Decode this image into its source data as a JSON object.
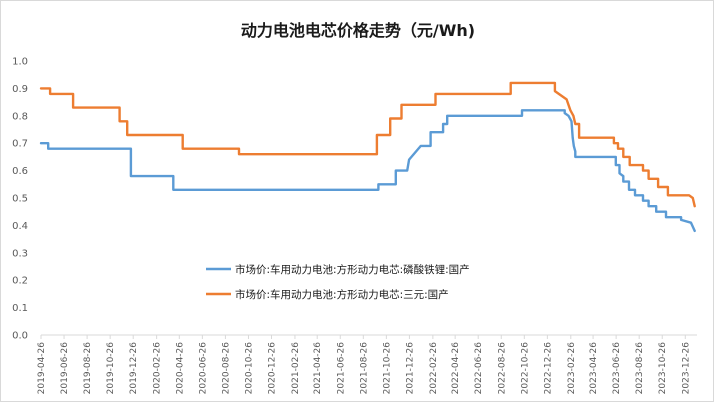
{
  "chart_data": {
    "type": "line",
    "title": "动力电池电芯价格走势（元/Wh)",
    "xlabel": "",
    "ylabel": "",
    "ylim": [
      0,
      1.0
    ],
    "yticks": [
      "0.0",
      "0.1",
      "0.2",
      "0.3",
      "0.4",
      "0.5",
      "0.6",
      "0.7",
      "0.8",
      "0.9",
      "1.0"
    ],
    "x_start": "2019-04-26",
    "x_end": "2024-01-26",
    "x_ticks": [
      "2019-04-26",
      "2019-06-26",
      "2019-08-26",
      "2019-10-26",
      "2019-12-26",
      "2020-02-26",
      "2020-04-26",
      "2020-06-26",
      "2020-08-26",
      "2020-10-26",
      "2020-12-26",
      "2021-02-26",
      "2021-04-26",
      "2021-06-26",
      "2021-08-26",
      "2021-10-26",
      "2021-12-26",
      "2022-02-26",
      "2022-04-26",
      "2022-06-26",
      "2022-08-26",
      "2022-10-26",
      "2022-12-26",
      "2023-02-26",
      "2023-04-26",
      "2023-06-26",
      "2023-08-26",
      "2023-10-26",
      "2023-12-26"
    ],
    "grid": false,
    "legend": "center",
    "series": [
      {
        "name": "市场价:车用动力电池:方形动力电芯:磷酸铁锂:国产",
        "color": "#5b9bd5",
        "x": [
          "2019-04-26",
          "2019-05-15",
          "2019-05-15",
          "2019-12-20",
          "2019-12-20",
          "2020-04-10",
          "2020-04-10",
          "2021-10-05",
          "2021-10-05",
          "2021-11-20",
          "2021-11-20",
          "2021-12-20",
          "2021-12-25",
          "2022-01-25",
          "2022-01-25",
          "2022-02-20",
          "2022-02-20",
          "2022-03-25",
          "2022-03-25",
          "2022-04-05",
          "2022-04-05",
          "2022-10-20",
          "2022-10-20",
          "2023-02-10",
          "2023-02-10",
          "2023-02-20",
          "2023-02-28",
          "2023-03-03",
          "2023-03-06",
          "2023-03-10",
          "2023-03-10",
          "2023-06-25",
          "2023-06-25",
          "2023-07-05",
          "2023-07-05",
          "2023-07-15",
          "2023-07-15",
          "2023-07-30",
          "2023-07-30",
          "2023-08-15",
          "2023-08-15",
          "2023-09-05",
          "2023-09-05",
          "2023-09-20",
          "2023-09-20",
          "2023-10-10",
          "2023-10-10",
          "2023-11-05",
          "2023-11-05",
          "2023-12-15",
          "2023-12-15",
          "2024-01-10",
          "2024-01-20"
        ],
        "values": [
          0.7,
          0.7,
          0.68,
          0.68,
          0.58,
          0.58,
          0.53,
          0.53,
          0.55,
          0.55,
          0.6,
          0.6,
          0.64,
          0.69,
          0.69,
          0.69,
          0.74,
          0.74,
          0.77,
          0.77,
          0.8,
          0.8,
          0.82,
          0.82,
          0.81,
          0.8,
          0.78,
          0.72,
          0.69,
          0.67,
          0.65,
          0.65,
          0.62,
          0.62,
          0.59,
          0.58,
          0.56,
          0.56,
          0.53,
          0.53,
          0.51,
          0.51,
          0.49,
          0.49,
          0.47,
          0.47,
          0.45,
          0.45,
          0.43,
          0.43,
          0.42,
          0.41,
          0.38
        ]
      },
      {
        "name": "市场价:车用动力电池:方形动力电芯:三元:国产",
        "color": "#ed7d31",
        "x": [
          "2019-04-26",
          "2019-05-20",
          "2019-05-20",
          "2019-07-20",
          "2019-07-20",
          "2019-11-20",
          "2019-11-20",
          "2019-12-10",
          "2019-12-10",
          "2020-05-05",
          "2020-05-05",
          "2020-10-01",
          "2020-10-01",
          "2021-10-01",
          "2021-10-01",
          "2021-11-05",
          "2021-11-05",
          "2021-12-05",
          "2021-12-05",
          "2021-12-20",
          "2021-12-20",
          "2022-03-05",
          "2022-03-05",
          "2022-04-05",
          "2022-04-05",
          "2022-09-20",
          "2022-09-20",
          "2023-01-15",
          "2023-01-15",
          "2023-02-15",
          "2023-02-25",
          "2023-03-05",
          "2023-03-10",
          "2023-03-20",
          "2023-03-20",
          "2023-06-20",
          "2023-06-20",
          "2023-07-01",
          "2023-07-01",
          "2023-07-15",
          "2023-07-15",
          "2023-08-01",
          "2023-08-01",
          "2023-09-05",
          "2023-09-05",
          "2023-09-20",
          "2023-09-20",
          "2023-10-15",
          "2023-10-15",
          "2023-11-10",
          "2023-11-10",
          "2024-01-05",
          "2024-01-15",
          "2024-01-20"
        ],
        "values": [
          0.9,
          0.9,
          0.88,
          0.88,
          0.83,
          0.83,
          0.78,
          0.78,
          0.73,
          0.73,
          0.68,
          0.68,
          0.66,
          0.66,
          0.73,
          0.73,
          0.79,
          0.79,
          0.84,
          0.84,
          0.84,
          0.84,
          0.88,
          0.88,
          0.88,
          0.88,
          0.92,
          0.92,
          0.89,
          0.86,
          0.82,
          0.8,
          0.77,
          0.77,
          0.72,
          0.72,
          0.7,
          0.7,
          0.68,
          0.68,
          0.65,
          0.65,
          0.62,
          0.62,
          0.6,
          0.6,
          0.57,
          0.57,
          0.54,
          0.54,
          0.51,
          0.51,
          0.5,
          0.47
        ]
      }
    ]
  }
}
